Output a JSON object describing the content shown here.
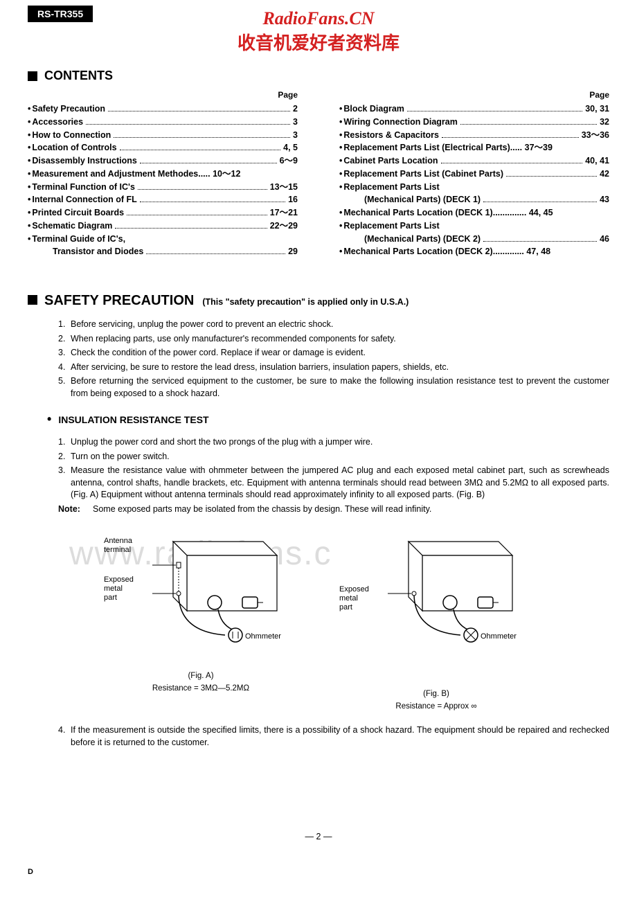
{
  "model": "RS-TR355",
  "watermark": {
    "line1": "RadioFans.CN",
    "line2": "收音机爱好者资料库",
    "bg": "www.radiofans.c"
  },
  "contents_heading": "CONTENTS",
  "page_label": "Page",
  "toc_left": [
    {
      "bullet": true,
      "title": "Safety Precaution",
      "dots": true,
      "page": "2"
    },
    {
      "bullet": true,
      "title": "Accessories",
      "dots": true,
      "page": "3"
    },
    {
      "bullet": true,
      "title": "How to Connection",
      "dots": true,
      "page": "3"
    },
    {
      "bullet": true,
      "title": "Location of Controls",
      "dots": true,
      "page": "4, 5"
    },
    {
      "bullet": true,
      "title": "Disassembly Instructions",
      "dots": true,
      "page": "6～9"
    },
    {
      "bullet": true,
      "title": "Measurement and Adjustment Methodes.....",
      "dots": false,
      "page": "10～12"
    },
    {
      "bullet": true,
      "title": "Terminal Function of IC's",
      "dots": true,
      "page": "13～15"
    },
    {
      "bullet": true,
      "title": "Internal Connection of FL",
      "dots": true,
      "page": "16"
    },
    {
      "bullet": true,
      "title": "Printed Circuit Boards",
      "dots": true,
      "page": "17～21"
    },
    {
      "bullet": true,
      "title": "Schematic Diagram",
      "dots": true,
      "page": "22～29"
    },
    {
      "bullet": true,
      "title": "Terminal Guide of IC's,",
      "dots": false,
      "page": ""
    },
    {
      "bullet": false,
      "sub": true,
      "title": "Transistor and Diodes",
      "dots": true,
      "page": "29"
    }
  ],
  "toc_right": [
    {
      "bullet": true,
      "title": "Block Diagram",
      "dots": true,
      "page": "30, 31"
    },
    {
      "bullet": true,
      "title": "Wiring Connection Diagram",
      "dots": true,
      "page": "32"
    },
    {
      "bullet": true,
      "title": "Resistors & Capacitors",
      "dots": true,
      "page": "33～36"
    },
    {
      "bullet": true,
      "title": "Replacement Parts List (Electrical Parts).....",
      "dots": false,
      "page": "37～39"
    },
    {
      "bullet": true,
      "title": "Cabinet Parts Location",
      "dots": true,
      "page": "40, 41"
    },
    {
      "bullet": true,
      "title": "Replacement Parts List (Cabinet Parts)",
      "dots": true,
      "page": "42"
    },
    {
      "bullet": true,
      "title": "Replacement Parts List",
      "dots": false,
      "page": ""
    },
    {
      "bullet": false,
      "sub": true,
      "title": "(Mechanical Parts) (DECK 1)",
      "dots": true,
      "page": "43"
    },
    {
      "bullet": true,
      "title": "Mechanical Parts Location (DECK 1)..............",
      "dots": false,
      "page": "44, 45"
    },
    {
      "bullet": true,
      "title": "Replacement Parts List",
      "dots": false,
      "page": ""
    },
    {
      "bullet": false,
      "sub": true,
      "title": "(Mechanical Parts) (DECK 2)",
      "dots": true,
      "page": "46"
    },
    {
      "bullet": true,
      "title": "Mechanical Parts Location (DECK 2).............",
      "dots": false,
      "page": "47, 48"
    }
  ],
  "safety": {
    "title": "SAFETY PRECAUTION",
    "note": "(This \"safety precaution\" is applied only in U.S.A.)",
    "items": [
      "Before servicing, unplug the power cord to prevent an electric shock.",
      "When replacing parts, use only manufacturer's recommended components for safety.",
      "Check the condition of the power cord. Replace if wear or damage is evident.",
      "After servicing, be sure to restore the lead dress, insulation barriers, insulation papers, shields, etc.",
      "Before returning the serviced equipment to the customer, be sure to make the following insulation resistance test to prevent the customer from being exposed to a shock hazard."
    ]
  },
  "insulation": {
    "title": "INSULATION RESISTANCE TEST",
    "items": [
      "Unplug the power cord and short the two prongs of the plug with a jumper wire.",
      "Turn on the power switch.",
      "Measure the resistance value with ohmmeter between the jumpered AC plug and each exposed metal cabinet part, such as screwheads antenna, control shafts, handle brackets, etc. Equipment with antenna terminals should read between 3MΩ and 5.2MΩ to all exposed parts. (Fig. A) Equipment without antenna terminals should read approximately infinity to all exposed parts. (Fig. B)"
    ],
    "note_label": "Note:",
    "note_text": "Some exposed parts may be isolated from the chassis by design. These will read infinity.",
    "item4": "If the measurement is outside the specified limits, there is a possibility of a shock hazard. The equipment should be repaired and rechecked before it is returned to the customer."
  },
  "figures": {
    "a": {
      "antenna_label": "Antenna\nterminal",
      "exposed_label": "Exposed\nmetal\npart",
      "ohmmeter": "Ohmmeter",
      "caption": "(Fig. A)",
      "resistance": "Resistance = 3MΩ—5.2MΩ"
    },
    "b": {
      "exposed_label": "Exposed\nmetal\npart",
      "ohmmeter": "Ohmmeter",
      "caption": "(Fig. B)",
      "resistance": "Resistance = Approx  ∞"
    }
  },
  "page_number": "— 2 —",
  "corner": "D"
}
